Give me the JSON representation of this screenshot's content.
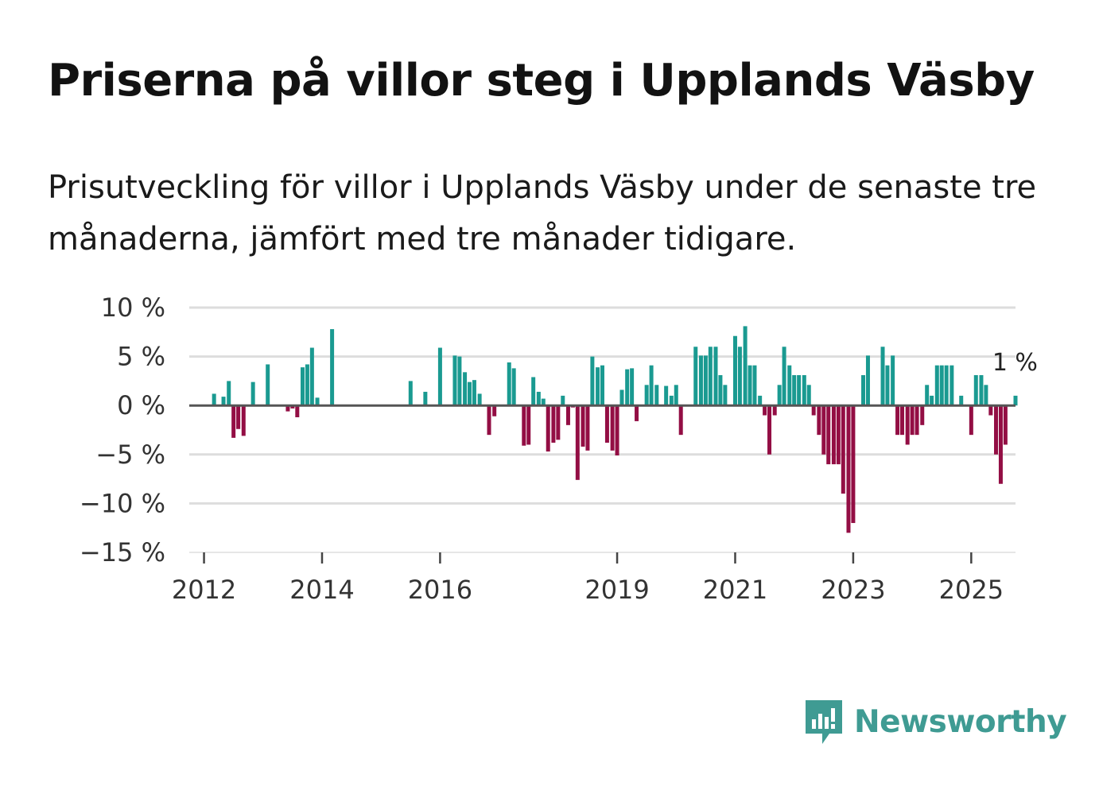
{
  "title": "Priserna på villor steg i Upplands Väsby",
  "subtitle": "Prisutveckling för villor i Upplands Väsby under de senaste tre månaderna, jämfört med tre månader tidigare.",
  "brand": {
    "name": "Newsworthy",
    "color": "#3f9b93",
    "icon": "newsworthy-logo-icon"
  },
  "colors": {
    "positive": "#1a9a91",
    "negative": "#930e44",
    "grid": "#dddddd",
    "zero": "#555555"
  },
  "chart_data": {
    "type": "bar",
    "title": "Priserna på villor steg i Upplands Väsby",
    "xlabel": "",
    "ylabel": "",
    "ylim": [
      -15,
      10
    ],
    "yticks": [
      10,
      5,
      0,
      -5,
      -10,
      -15
    ],
    "ytick_labels": [
      "10 %",
      "5 %",
      "0 %",
      "−5 %",
      "−10 %",
      "−15 %"
    ],
    "xlim": [
      2011.75,
      2025.75
    ],
    "xticks": [
      2012,
      2014,
      2016,
      2019,
      2021,
      2023,
      2025
    ],
    "xtick_labels": [
      "2012",
      "2014",
      "2016",
      "2019",
      "2021",
      "2023",
      "2025"
    ],
    "annotation": {
      "label": "1 %",
      "x": 2025.58,
      "value": 1
    },
    "series": [
      {
        "name": "Prisutveckling",
        "x": [
          2012.17,
          2012.33,
          2012.42,
          2012.5,
          2012.58,
          2012.67,
          2012.83,
          2013.08,
          2013.42,
          2013.5,
          2013.58,
          2013.67,
          2013.75,
          2013.83,
          2013.92,
          2014.17,
          2015.5,
          2015.75,
          2016.0,
          2016.25,
          2016.33,
          2016.42,
          2016.5,
          2016.58,
          2016.67,
          2016.83,
          2016.92,
          2017.17,
          2017.25,
          2017.42,
          2017.5,
          2017.58,
          2017.67,
          2017.75,
          2017.83,
          2017.92,
          2018.0,
          2018.08,
          2018.17,
          2018.25,
          2018.33,
          2018.42,
          2018.5,
          2018.58,
          2018.67,
          2018.75,
          2018.83,
          2018.92,
          2019.0,
          2019.08,
          2019.17,
          2019.25,
          2019.33,
          2019.5,
          2019.58,
          2019.67,
          2019.83,
          2019.92,
          2020.0,
          2020.08,
          2020.33,
          2020.42,
          2020.5,
          2020.58,
          2020.67,
          2020.75,
          2020.83,
          2021.0,
          2021.08,
          2021.17,
          2021.25,
          2021.33,
          2021.42,
          2021.5,
          2021.58,
          2021.67,
          2021.75,
          2021.83,
          2021.92,
          2022.0,
          2022.08,
          2022.17,
          2022.25,
          2022.33,
          2022.42,
          2022.5,
          2022.58,
          2022.67,
          2022.75,
          2022.83,
          2022.92,
          2023.0,
          2023.17,
          2023.25,
          2023.5,
          2023.58,
          2023.67,
          2023.75,
          2023.83,
          2023.92,
          2024.0,
          2024.08,
          2024.17,
          2024.25,
          2024.33,
          2024.42,
          2024.5,
          2024.58,
          2024.67,
          2024.83,
          2025.0,
          2025.08,
          2025.17,
          2025.25,
          2025.33,
          2025.42,
          2025.5,
          2025.58,
          2025.75
        ],
        "values": [
          1.2,
          0.9,
          2.5,
          -3.3,
          -2.4,
          -3.1,
          2.4,
          4.2,
          -0.6,
          -0.3,
          -1.2,
          3.9,
          4.2,
          5.9,
          0.8,
          7.8,
          2.5,
          1.4,
          5.9,
          5.1,
          5.0,
          3.4,
          2.4,
          2.6,
          1.2,
          -3.0,
          -1.1,
          4.4,
          3.8,
          -4.1,
          -4.0,
          2.9,
          1.4,
          0.7,
          -4.7,
          -3.8,
          -3.5,
          1.0,
          -2.0,
          -0.2,
          -7.6,
          -4.2,
          -4.6,
          5.0,
          3.9,
          4.1,
          -3.8,
          -4.6,
          -5.1,
          1.6,
          3.7,
          3.8,
          -1.6,
          2.1,
          4.1,
          2.1,
          2.0,
          1.0,
          2.1,
          -3.0,
          6.0,
          5.1,
          5.1,
          6.0,
          6.0,
          3.1,
          2.1,
          7.1,
          6.0,
          8.1,
          4.1,
          4.1,
          1.0,
          -1.0,
          -5.0,
          -1.0,
          2.1,
          6.0,
          4.1,
          3.1,
          3.1,
          3.1,
          2.1,
          -1.0,
          -3.0,
          -5.0,
          -6.0,
          -6.0,
          -6.0,
          -9.0,
          -13.0,
          -12.0,
          3.1,
          5.1,
          6.0,
          4.1,
          5.1,
          -3.0,
          -3.0,
          -4.0,
          -3.0,
          -3.0,
          -2.0,
          2.1,
          1.0,
          4.1,
          4.1,
          4.1,
          4.1,
          1.0,
          -3.0,
          3.1,
          3.1,
          2.1,
          -1.0,
          -5.0,
          -8.0,
          -4.0,
          1.0
        ]
      }
    ]
  }
}
